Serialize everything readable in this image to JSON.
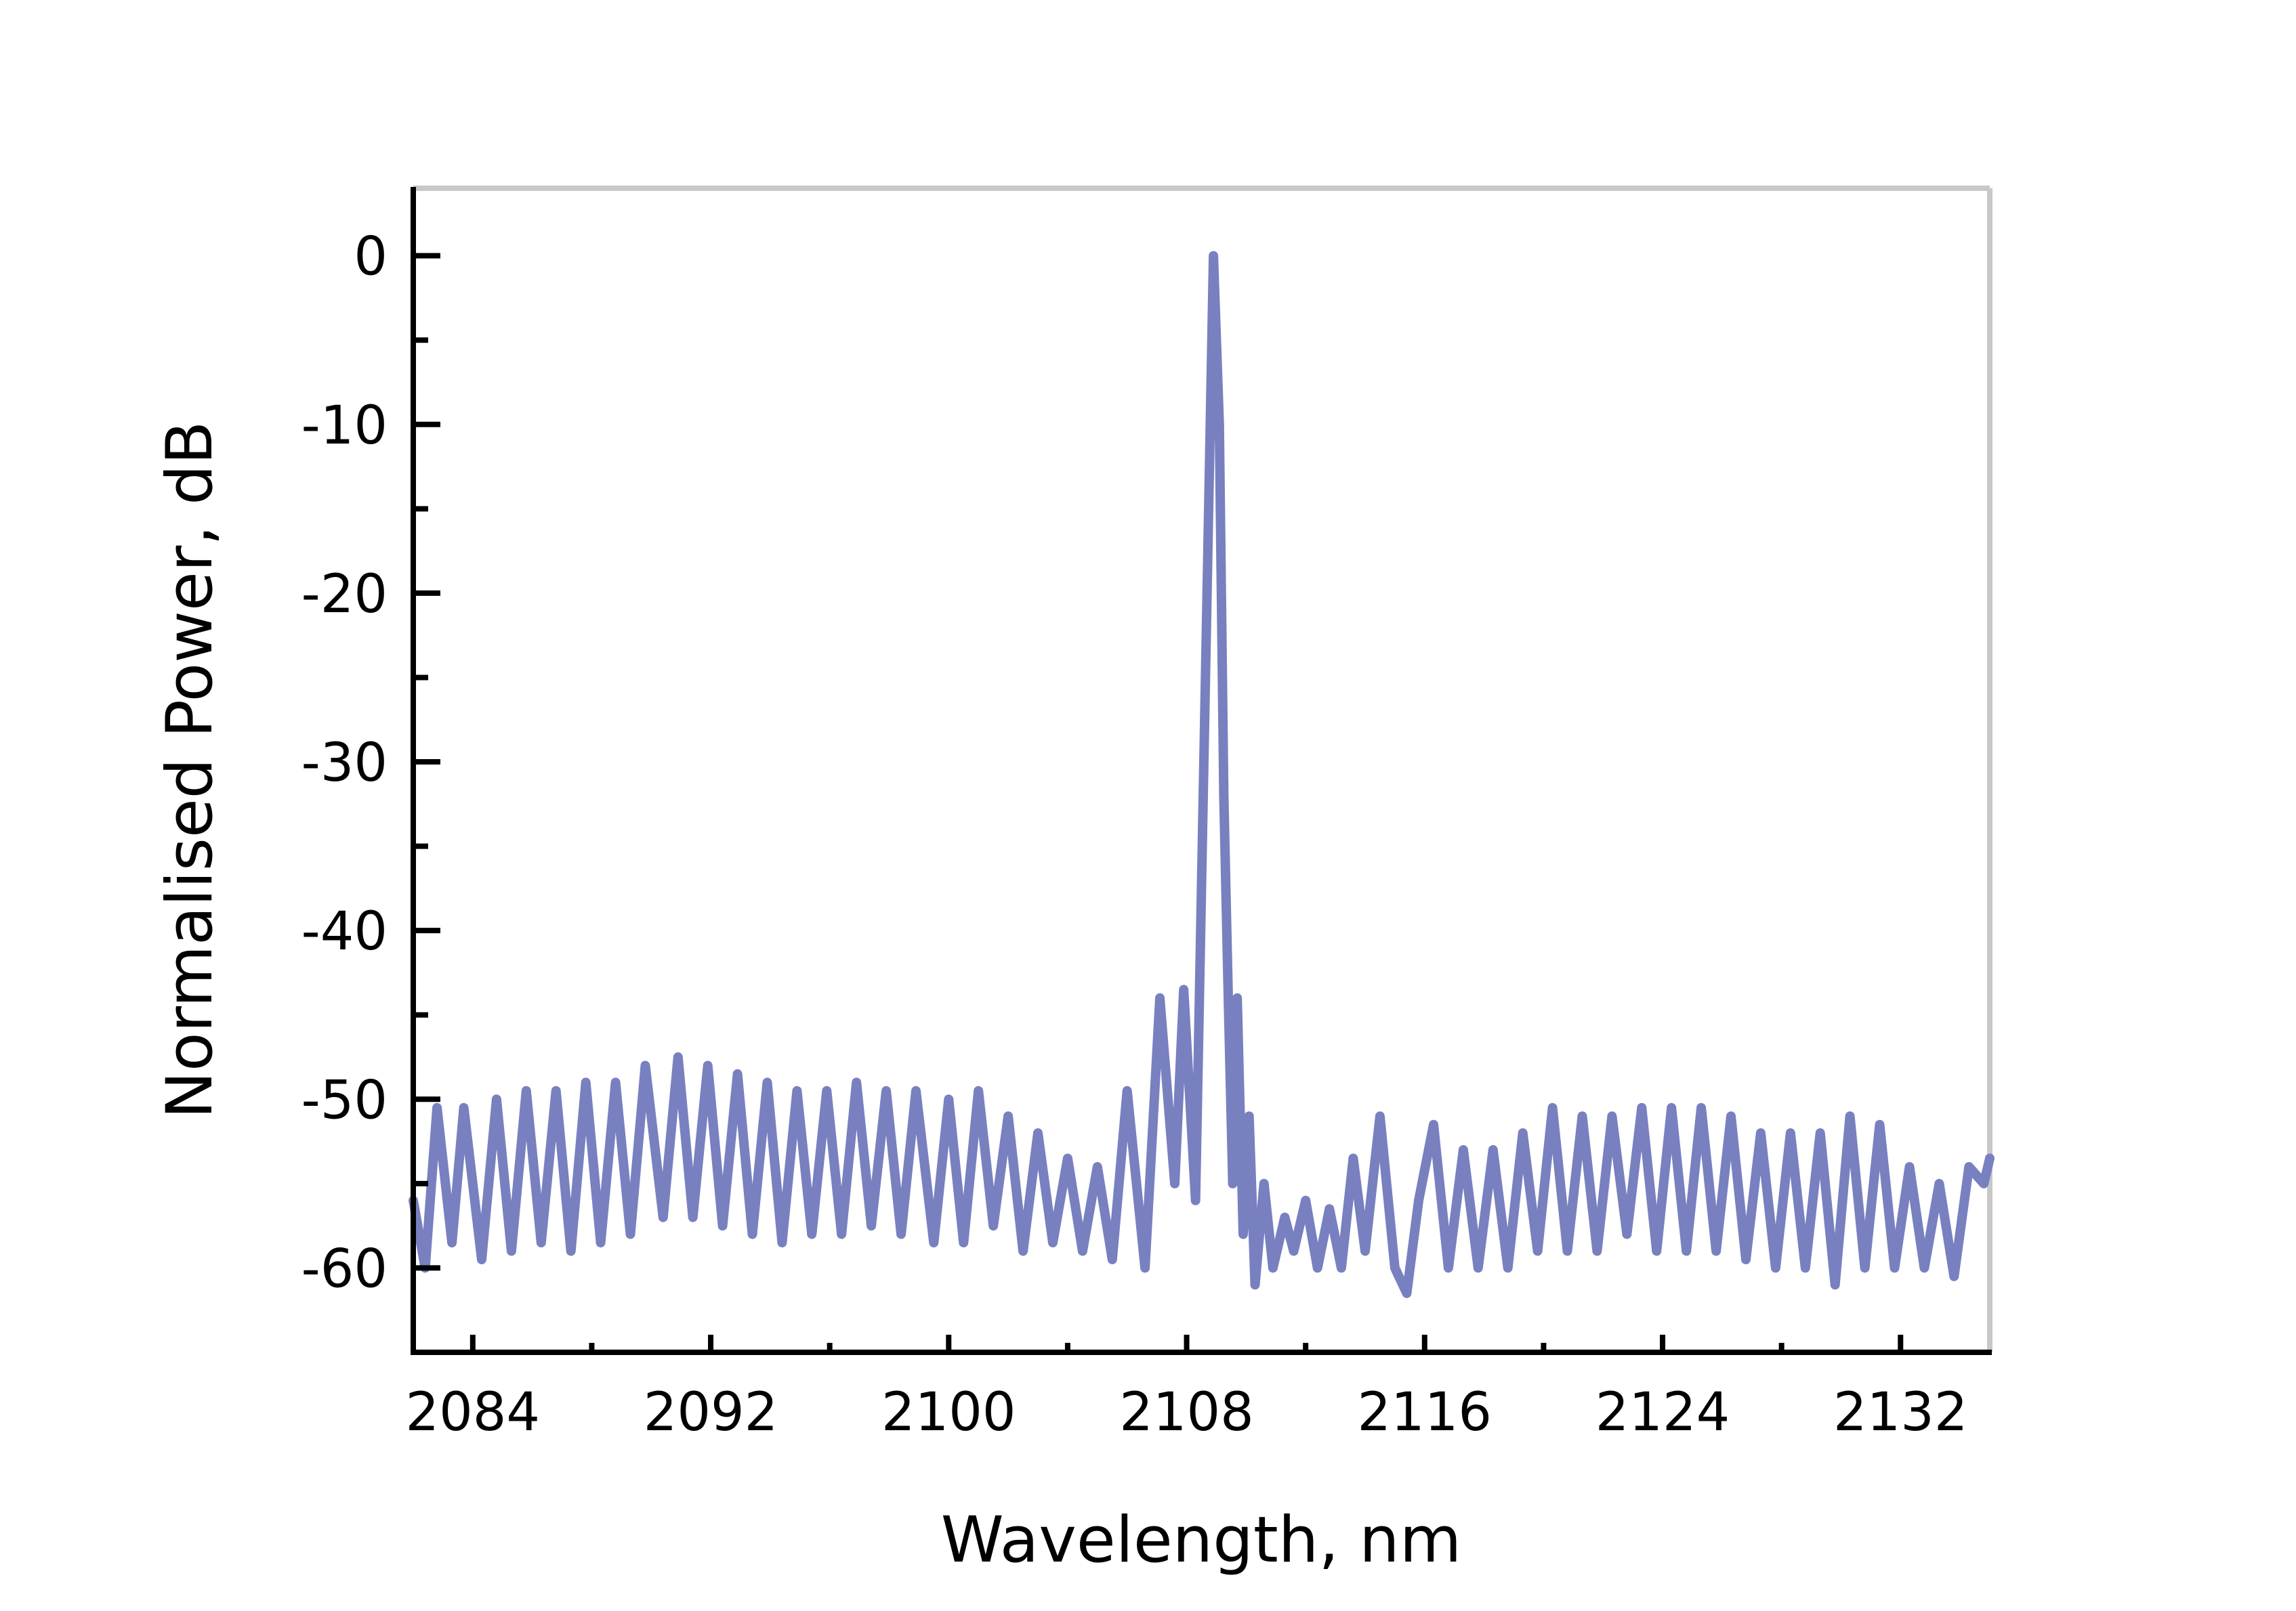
{
  "chart_data": {
    "type": "line",
    "title": "",
    "xlabel": "Wavelength, nm",
    "ylabel": "Normalised Power, dB",
    "xlim": [
      2082,
      2135
    ],
    "ylim": [
      -65,
      4
    ],
    "x_ticks": [
      2084,
      2092,
      2100,
      2108,
      2116,
      2124,
      2132
    ],
    "x_tick_labels": [
      "2084",
      "2092",
      "2100",
      "2108",
      "2116",
      "2124",
      "2132"
    ],
    "y_ticks": [
      0,
      -10,
      -20,
      -30,
      -40,
      -50,
      -60
    ],
    "y_tick_labels": [
      "0",
      "-10",
      "-20",
      "-30",
      "-40",
      "-50",
      "-60"
    ],
    "grid": false,
    "legend": "none",
    "series": [
      {
        "color": "#7880c0",
        "x": [
          2082.0,
          2082.4,
          2082.8,
          2083.3,
          2083.7,
          2084.3,
          2084.8,
          2085.3,
          2085.8,
          2086.3,
          2086.8,
          2087.3,
          2087.8,
          2088.3,
          2088.8,
          2089.3,
          2089.8,
          2090.4,
          2090.9,
          2091.4,
          2091.9,
          2092.4,
          2092.9,
          2093.4,
          2093.9,
          2094.4,
          2094.9,
          2095.4,
          2095.9,
          2096.4,
          2096.9,
          2097.4,
          2097.9,
          2098.4,
          2098.9,
          2099.5,
          2100.0,
          2100.5,
          2101.0,
          2101.5,
          2102.0,
          2102.5,
          2103.0,
          2103.5,
          2104.0,
          2104.5,
          2105.0,
          2105.5,
          2106.0,
          2106.6,
          2107.1,
          2107.6,
          2107.9,
          2108.3,
          2108.6,
          2108.9,
          2109.1,
          2109.25,
          2109.4,
          2109.55,
          2109.7,
          2109.9,
          2110.1,
          2110.3,
          2110.6,
          2110.9,
          2111.3,
          2111.6,
          2112.0,
          2112.4,
          2112.8,
          2113.2,
          2113.6,
          2114.0,
          2114.5,
          2115.0,
          2115.4,
          2115.8,
          2116.3,
          2116.8,
          2117.3,
          2117.8,
          2118.3,
          2118.8,
          2119.3,
          2119.8,
          2120.3,
          2120.8,
          2121.3,
          2121.8,
          2122.3,
          2122.8,
          2123.3,
          2123.8,
          2124.3,
          2124.8,
          2125.3,
          2125.8,
          2126.3,
          2126.8,
          2127.3,
          2127.8,
          2128.3,
          2128.8,
          2129.3,
          2129.8,
          2130.3,
          2130.8,
          2131.3,
          2131.8,
          2132.3,
          2132.8,
          2133.3,
          2133.8,
          2134.3,
          2134.8,
          2135.0
        ],
        "y": [
          -56,
          -60,
          -50.5,
          -58.5,
          -50.5,
          -59.5,
          -50,
          -59,
          -49.5,
          -58.5,
          -49.5,
          -59,
          -49,
          -58.5,
          -49,
          -58,
          -48,
          -57,
          -47.5,
          -57,
          -48,
          -57.5,
          -48.5,
          -58,
          -49,
          -58.5,
          -49.5,
          -58,
          -49.5,
          -58,
          -49,
          -57.5,
          -49.5,
          -58,
          -49.5,
          -58.5,
          -50,
          -58.5,
          -49.5,
          -57.5,
          -51,
          -59,
          -52,
          -58.5,
          -53.5,
          -59,
          -54,
          -59.5,
          -49.5,
          -60,
          -44,
          -55,
          -43.5,
          -56,
          -28,
          0,
          -10,
          -32,
          -44,
          -55,
          -44,
          -58,
          -51,
          -61,
          -55,
          -60,
          -57,
          -59,
          -56,
          -60,
          -56.5,
          -60,
          -53.5,
          -59,
          -51,
          -60,
          -61.5,
          -56,
          -51.5,
          -60,
          -53,
          -60,
          -53,
          -60,
          -52,
          -59,
          -50.5,
          -59,
          -51,
          -59,
          -51,
          -58,
          -50.5,
          -59,
          -50.5,
          -59,
          -50.5,
          -59,
          -51,
          -59.5,
          -52,
          -60,
          -52,
          -60,
          -52,
          -61,
          -51,
          -60,
          -51.5,
          -60,
          -54,
          -60,
          -55,
          -60.5,
          -54,
          -55,
          -53.5
        ]
      }
    ]
  }
}
